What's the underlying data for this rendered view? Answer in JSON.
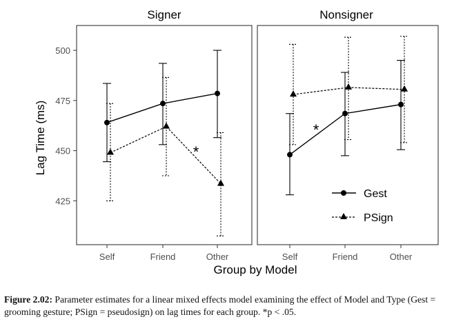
{
  "chart_data": [
    {
      "type": "line",
      "title": "Signer",
      "categories": [
        "Self",
        "Friend",
        "Other"
      ],
      "ylabel": "Lag Time (ms)",
      "ylim": [
        405,
        512
      ],
      "yticks": [
        425,
        450,
        475,
        500
      ],
      "series": [
        {
          "name": "Gest",
          "values": [
            464,
            473.5,
            478.5
          ],
          "lower": [
            444.5,
            453,
            456.5
          ],
          "upper": [
            483.5,
            493.5,
            500
          ],
          "style": "solid",
          "marker": "circle"
        },
        {
          "name": "PSign",
          "values": [
            449,
            462,
            433.5
          ],
          "lower": [
            425,
            437.5,
            407.5
          ],
          "upper": [
            473.5,
            486.5,
            459
          ],
          "style": "dashed",
          "marker": "triangle"
        }
      ],
      "annotations": [
        {
          "text": "*",
          "between": [
            "Friend",
            "Other"
          ],
          "y": 450
        }
      ],
      "grid": false
    },
    {
      "type": "line",
      "title": "Nonsigner",
      "categories": [
        "Self",
        "Friend",
        "Other"
      ],
      "ylim": [
        405,
        512
      ],
      "yticks": [
        425,
        450,
        475,
        500
      ],
      "series": [
        {
          "name": "Gest",
          "values": [
            448,
            468.5,
            473
          ],
          "lower": [
            428,
            447.5,
            450.5
          ],
          "upper": [
            468.5,
            489,
            495
          ],
          "style": "solid",
          "marker": "circle"
        },
        {
          "name": "PSign",
          "values": [
            478,
            481.5,
            480.5
          ],
          "lower": [
            453,
            455.5,
            454
          ],
          "upper": [
            503,
            506.5,
            507
          ],
          "style": "dashed",
          "marker": "triangle"
        }
      ],
      "annotations": [
        {
          "text": "*",
          "between": [
            "Self",
            "Friend"
          ],
          "y": 460
        }
      ],
      "legend": {
        "placement": "bottom-right",
        "entries": [
          "Gest",
          "PSign"
        ]
      },
      "grid": false
    }
  ],
  "xlabel": "Group by Model",
  "caption": {
    "label": "Figure 2.02:",
    "text": "Parameter estimates for a linear mixed effects model examining the effect of Model and Type (Gest = grooming gesture; PSign = pseudosign) on lag times for each group. *p < .05."
  }
}
